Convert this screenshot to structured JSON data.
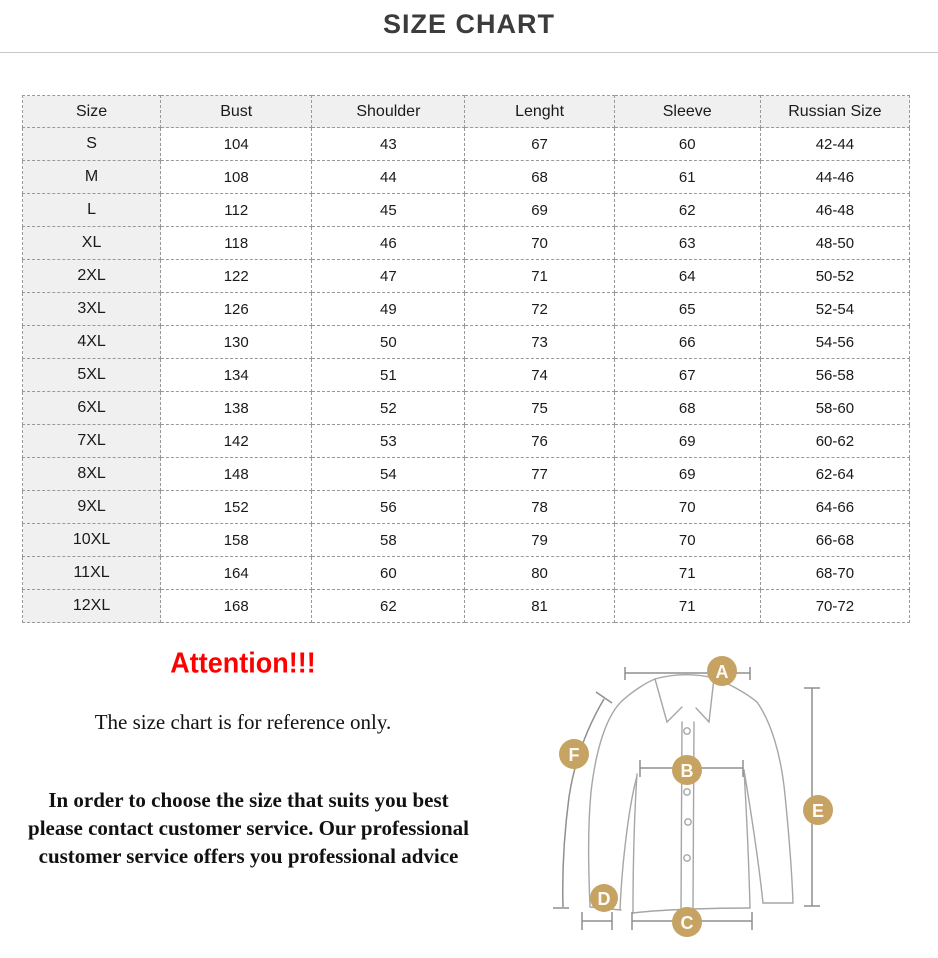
{
  "page": {
    "title": "SIZE CHART"
  },
  "table": {
    "columns": [
      "Size",
      "Bust",
      "Shoulder",
      "Lenght",
      "Sleeve",
      "Russian Size"
    ],
    "rows": [
      [
        "S",
        "104",
        "43",
        "67",
        "60",
        "42-44"
      ],
      [
        "M",
        "108",
        "44",
        "68",
        "61",
        "44-46"
      ],
      [
        "L",
        "112",
        "45",
        "69",
        "62",
        "46-48"
      ],
      [
        "XL",
        "118",
        "46",
        "70",
        "63",
        "48-50"
      ],
      [
        "2XL",
        "122",
        "47",
        "71",
        "64",
        "50-52"
      ],
      [
        "3XL",
        "126",
        "49",
        "72",
        "65",
        "52-54"
      ],
      [
        "4XL",
        "130",
        "50",
        "73",
        "66",
        "54-56"
      ],
      [
        "5XL",
        "134",
        "51",
        "74",
        "67",
        "56-58"
      ],
      [
        "6XL",
        "138",
        "52",
        "75",
        "68",
        "58-60"
      ],
      [
        "7XL",
        "142",
        "53",
        "76",
        "69",
        "60-62"
      ],
      [
        "8XL",
        "148",
        "54",
        "77",
        "69",
        "62-64"
      ],
      [
        "9XL",
        "152",
        "56",
        "78",
        "70",
        "64-66"
      ],
      [
        "10XL",
        "158",
        "58",
        "79",
        "70",
        "66-68"
      ],
      [
        "11XL",
        "164",
        "60",
        "80",
        "71",
        "68-70"
      ],
      [
        "12XL",
        "168",
        "62",
        "81",
        "71",
        "70-72"
      ]
    ]
  },
  "notes": {
    "attention": "Attention!!!",
    "reference": "The size chart is for reference only.",
    "advice_lines": [
      "In order to choose the size that suits you best",
      "please contact customer service. Our professional",
      "customer service offers you professional advice"
    ]
  },
  "diagram": {
    "markers": [
      {
        "label": "A",
        "meaning": "shoulder-width-marker"
      },
      {
        "label": "B",
        "meaning": "bust-width-marker"
      },
      {
        "label": "C",
        "meaning": "hem-width-marker"
      },
      {
        "label": "D",
        "meaning": "cuff-width-marker"
      },
      {
        "label": "E",
        "meaning": "length-marker"
      },
      {
        "label": "F",
        "meaning": "sleeve-length-marker"
      }
    ],
    "marker_color": "#c6a263"
  },
  "colors": {
    "title": "#3c3c3c",
    "attention_red": "#fe0000",
    "table_border": "#999999",
    "header_background": "#f0f0f0",
    "marker_tan": "#c6a263"
  }
}
